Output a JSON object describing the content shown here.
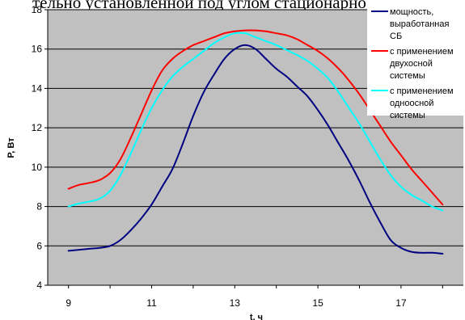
{
  "header_text": "тельно установленной под углом стационарно.",
  "chart_data": {
    "type": "line",
    "xlabel": "t, ч",
    "ylabel": "P, Вт",
    "xlim": [
      8.5,
      18.5
    ],
    "ylim": [
      4,
      18
    ],
    "yticks": [
      4,
      6,
      8,
      10,
      12,
      14,
      16,
      18
    ],
    "xtick_labels": [
      "9",
      "11",
      "13",
      "15",
      "17"
    ],
    "xtick_values": [
      9,
      11,
      13,
      15,
      17
    ],
    "grid": "horizontal",
    "plot_background": "#c0c0c0",
    "legend_position": "top-right",
    "series": [
      {
        "name": "мощность, выработанная СБ",
        "legend_lines": [
          "мощность,",
          "выработанная",
          "СБ"
        ],
        "color": "#000080",
        "x": [
          9.0,
          9.5,
          9.75,
          10.0,
          10.25,
          10.5,
          10.75,
          11.0,
          11.25,
          11.5,
          11.75,
          12.0,
          12.25,
          12.5,
          12.75,
          13.0,
          13.25,
          13.5,
          13.75,
          14.0,
          14.25,
          14.5,
          14.75,
          15.0,
          15.25,
          15.5,
          15.75,
          16.0,
          16.25,
          16.5,
          16.75,
          17.0,
          17.25,
          17.5,
          17.75,
          18.0
        ],
        "values": [
          5.75,
          5.85,
          5.9,
          6.0,
          6.3,
          6.8,
          7.4,
          8.1,
          9.0,
          9.9,
          11.2,
          12.6,
          13.8,
          14.7,
          15.5,
          16.0,
          16.2,
          16.0,
          15.5,
          15.0,
          14.6,
          14.1,
          13.6,
          12.9,
          12.1,
          11.2,
          10.3,
          9.3,
          8.2,
          7.2,
          6.3,
          5.9,
          5.7,
          5.65,
          5.65,
          5.6
        ]
      },
      {
        "name": "с применением двухосной системы",
        "legend_lines": [
          "с применением",
          "двухосной",
          "системы"
        ],
        "color": "#ff0000",
        "x": [
          9.0,
          9.25,
          9.5,
          9.75,
          10.0,
          10.25,
          10.5,
          10.75,
          11.0,
          11.25,
          11.5,
          11.75,
          12.0,
          12.25,
          12.5,
          12.75,
          13.0,
          13.25,
          13.5,
          13.75,
          14.0,
          14.25,
          14.5,
          14.75,
          15.0,
          15.25,
          15.5,
          15.75,
          16.0,
          16.25,
          16.5,
          16.75,
          17.0,
          17.25,
          17.5,
          17.75,
          18.0
        ],
        "values": [
          8.9,
          9.1,
          9.2,
          9.35,
          9.7,
          10.4,
          11.5,
          12.7,
          13.9,
          14.9,
          15.5,
          15.9,
          16.2,
          16.4,
          16.6,
          16.8,
          16.9,
          16.95,
          16.95,
          16.9,
          16.8,
          16.7,
          16.5,
          16.2,
          15.9,
          15.5,
          15.0,
          14.4,
          13.7,
          12.9,
          12.1,
          11.3,
          10.6,
          9.9,
          9.3,
          8.7,
          8.1
        ]
      },
      {
        "name": "с применением одноосной системы",
        "legend_lines": [
          "с применением",
          "одноосной",
          "системы"
        ],
        "color": "#00ffff",
        "x": [
          9.0,
          9.25,
          9.5,
          9.75,
          10.0,
          10.25,
          10.5,
          10.75,
          11.0,
          11.25,
          11.5,
          11.75,
          12.0,
          12.25,
          12.5,
          12.75,
          13.0,
          13.25,
          13.5,
          13.75,
          14.0,
          14.25,
          14.5,
          14.75,
          15.0,
          15.25,
          15.5,
          15.75,
          16.0,
          16.25,
          16.5,
          16.75,
          17.0,
          17.25,
          17.5,
          17.75,
          18.0
        ],
        "values": [
          8.0,
          8.15,
          8.25,
          8.4,
          8.8,
          9.6,
          10.7,
          11.9,
          13.0,
          13.9,
          14.6,
          15.1,
          15.5,
          15.9,
          16.3,
          16.6,
          16.8,
          16.8,
          16.6,
          16.4,
          16.2,
          15.95,
          15.7,
          15.4,
          15.0,
          14.5,
          13.8,
          13.0,
          12.2,
          11.3,
          10.4,
          9.6,
          9.0,
          8.6,
          8.3,
          8.0,
          7.8
        ]
      }
    ]
  }
}
